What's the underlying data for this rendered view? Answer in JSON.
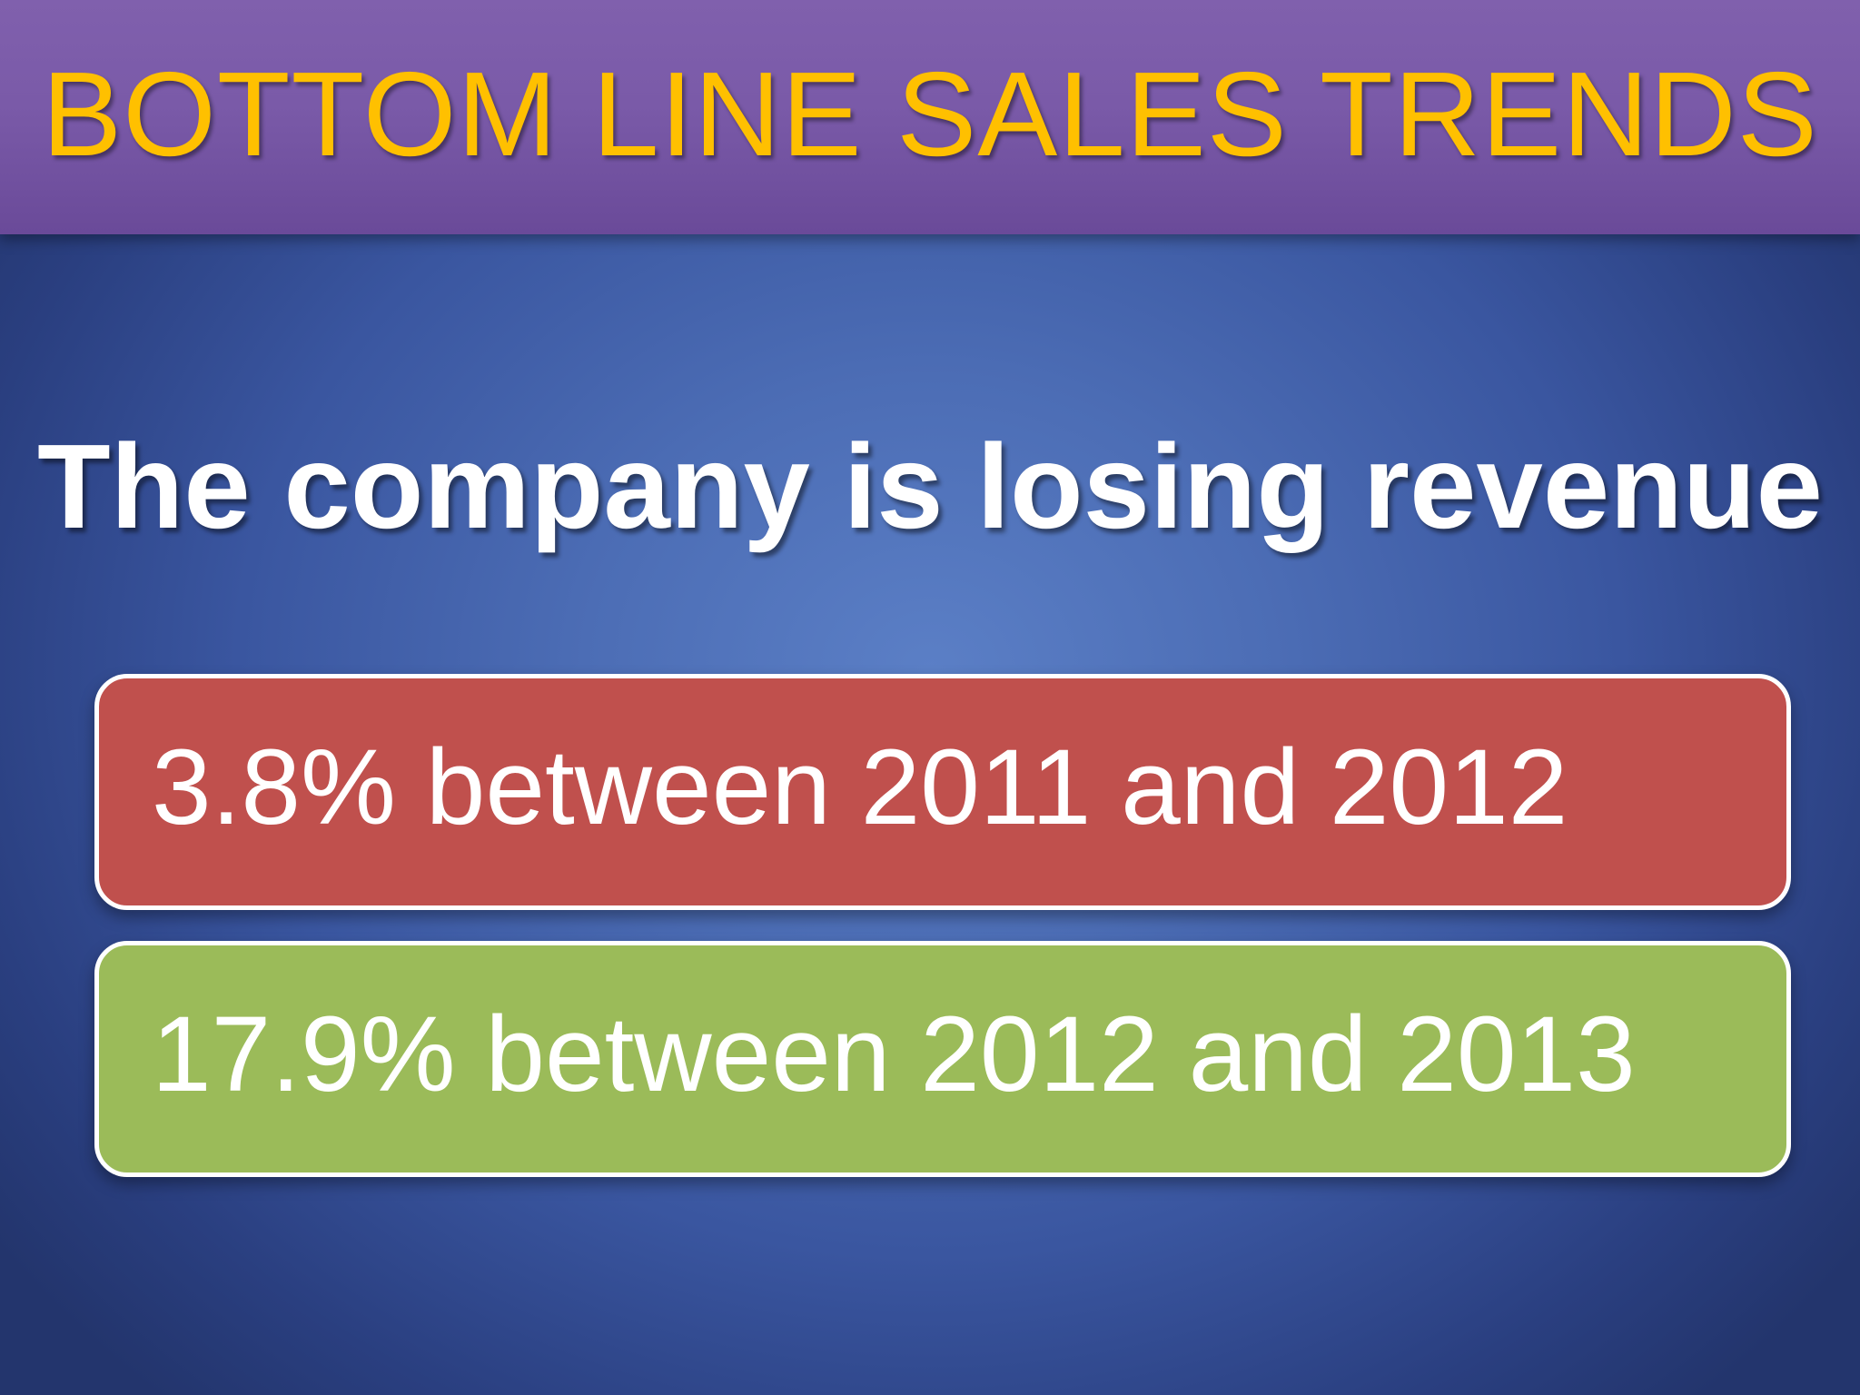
{
  "slide": {
    "title": "BOTTOM LINE SALES TRENDS",
    "headline": "The company is losing revenue",
    "stats": [
      {
        "text": "3.8% between 2011 and 2012",
        "color": "#c0504d"
      },
      {
        "text": "17.9% between 2012 and 2013",
        "color": "#9bbb59"
      }
    ]
  },
  "colors": {
    "title_bar": "#7a5aa8",
    "title_text": "#ffc000",
    "background": "#3a56a0"
  }
}
